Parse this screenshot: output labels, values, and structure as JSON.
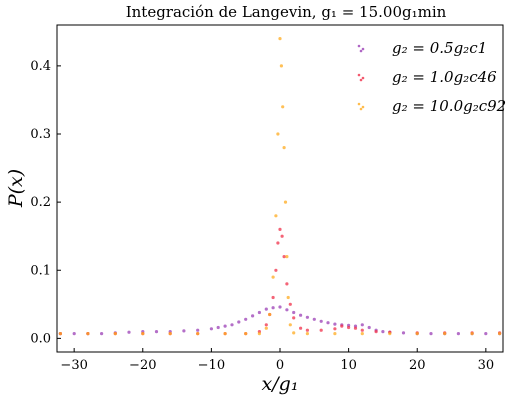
{
  "chart_data": {
    "type": "scatter",
    "title": "Integración de Langevin, g₁ = 15.00g₁min",
    "xlabel": "x/g₁",
    "ylabel": "P(x)",
    "xlim": [
      -32.5,
      32.5
    ],
    "ylim": [
      -0.02,
      0.46
    ],
    "xticks": [
      -30,
      -20,
      -10,
      0,
      10,
      20,
      30
    ],
    "xtick_labels": [
      "−30",
      "−20",
      "−10",
      "0",
      "10",
      "20",
      "30"
    ],
    "yticks": [
      0.0,
      0.1,
      0.2,
      0.3,
      0.4
    ],
    "ytick_labels": [
      "0.0",
      "0.1",
      "0.2",
      "0.3",
      "0.4"
    ],
    "grid": false,
    "legend_position": "top-right",
    "series": [
      {
        "name": "g₂ = 0.5g₂c1",
        "color": "#9b3fb5",
        "points": [
          [
            -32,
            0.007
          ],
          [
            -30,
            0.007
          ],
          [
            -28,
            0.007
          ],
          [
            -26,
            0.007
          ],
          [
            -24,
            0.008
          ],
          [
            -22,
            0.009
          ],
          [
            -20,
            0.01
          ],
          [
            -18,
            0.01
          ],
          [
            -16,
            0.01
          ],
          [
            -14,
            0.011
          ],
          [
            -12,
            0.012
          ],
          [
            -10,
            0.014
          ],
          [
            -9,
            0.016
          ],
          [
            -8,
            0.018
          ],
          [
            -7,
            0.02
          ],
          [
            -6,
            0.024
          ],
          [
            -5,
            0.028
          ],
          [
            -4,
            0.033
          ],
          [
            -3,
            0.038
          ],
          [
            -2,
            0.043
          ],
          [
            -1,
            0.045
          ],
          [
            0,
            0.046
          ],
          [
            1,
            0.042
          ],
          [
            2,
            0.038
          ],
          [
            3,
            0.034
          ],
          [
            4,
            0.031
          ],
          [
            5,
            0.028
          ],
          [
            6,
            0.025
          ],
          [
            7,
            0.023
          ],
          [
            8,
            0.021
          ],
          [
            9,
            0.02
          ],
          [
            10,
            0.019
          ],
          [
            11,
            0.018
          ],
          [
            12,
            0.02
          ],
          [
            13,
            0.016
          ],
          [
            14,
            0.012
          ],
          [
            15,
            0.01
          ],
          [
            16,
            0.009
          ],
          [
            18,
            0.008
          ],
          [
            20,
            0.007
          ],
          [
            22,
            0.007
          ],
          [
            24,
            0.007
          ],
          [
            26,
            0.007
          ],
          [
            28,
            0.007
          ],
          [
            30,
            0.007
          ],
          [
            32,
            0.007
          ]
        ]
      },
      {
        "name": "g₂ = 1.0g₂c46",
        "color": "#f0304a",
        "points": [
          [
            -32,
            0.007
          ],
          [
            -28,
            0.007
          ],
          [
            -24,
            0.007
          ],
          [
            -20,
            0.007
          ],
          [
            -16,
            0.007
          ],
          [
            -12,
            0.007
          ],
          [
            -8,
            0.007
          ],
          [
            -5,
            0.007
          ],
          [
            -3,
            0.01
          ],
          [
            -2,
            0.02
          ],
          [
            -1.5,
            0.035
          ],
          [
            -1,
            0.06
          ],
          [
            -0.6,
            0.1
          ],
          [
            -0.3,
            0.14
          ],
          [
            0,
            0.16
          ],
          [
            0.3,
            0.15
          ],
          [
            0.6,
            0.12
          ],
          [
            1,
            0.08
          ],
          [
            1.5,
            0.05
          ],
          [
            2,
            0.03
          ],
          [
            3,
            0.015
          ],
          [
            4,
            0.012
          ],
          [
            6,
            0.012
          ],
          [
            8,
            0.014
          ],
          [
            9,
            0.018
          ],
          [
            10,
            0.016
          ],
          [
            11,
            0.015
          ],
          [
            12,
            0.012
          ],
          [
            14,
            0.01
          ],
          [
            16,
            0.009
          ],
          [
            20,
            0.008
          ],
          [
            24,
            0.008
          ],
          [
            28,
            0.008
          ],
          [
            32,
            0.008
          ]
        ]
      },
      {
        "name": "g₂ = 10.0g₂c92",
        "color": "#ffab1f",
        "points": [
          [
            -32,
            0.007
          ],
          [
            -28,
            0.007
          ],
          [
            -24,
            0.007
          ],
          [
            -20,
            0.007
          ],
          [
            -16,
            0.007
          ],
          [
            -12,
            0.007
          ],
          [
            -8,
            0.007
          ],
          [
            -5,
            0.007
          ],
          [
            -3,
            0.007
          ],
          [
            -2,
            0.015
          ],
          [
            -1.5,
            0.035
          ],
          [
            -1,
            0.09
          ],
          [
            -0.6,
            0.18
          ],
          [
            -0.3,
            0.3
          ],
          [
            0,
            0.44
          ],
          [
            0.2,
            0.4
          ],
          [
            0.4,
            0.34
          ],
          [
            0.6,
            0.28
          ],
          [
            0.8,
            0.2
          ],
          [
            1.0,
            0.12
          ],
          [
            1.2,
            0.06
          ],
          [
            1.5,
            0.02
          ],
          [
            2,
            0.008
          ],
          [
            4,
            0.007
          ],
          [
            8,
            0.007
          ],
          [
            12,
            0.007
          ],
          [
            16,
            0.007
          ],
          [
            20,
            0.007
          ],
          [
            24,
            0.007
          ],
          [
            28,
            0.007
          ],
          [
            32,
            0.007
          ]
        ]
      }
    ]
  }
}
